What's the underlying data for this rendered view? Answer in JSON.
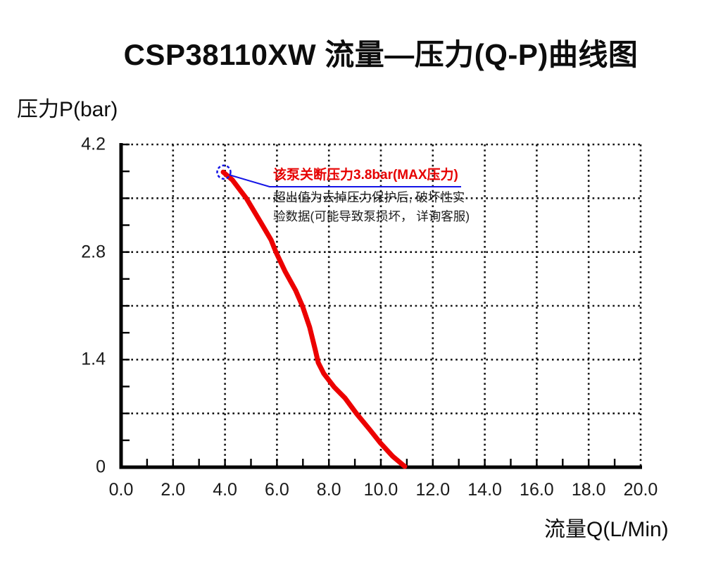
{
  "title": "CSP38110XW 流量—压力(Q-P)曲线图",
  "axes": {
    "y_title": "压力P(bar)",
    "x_title": "流量Q(L/Min)"
  },
  "annotation": {
    "headline": "该泵关断压力3.8bar(MAX压力)",
    "body_line1": "超出值为去掉压力保护后, 破坏性实",
    "body_line2": "验数据(可能导致泵损坏， 详询客服)",
    "headline_color": "#e60000",
    "leader_color": "#1414e6"
  },
  "chart_data": {
    "type": "line",
    "title": "CSP38110XW 流量—压力(Q-P)曲线图",
    "xlabel": "流量Q(L/Min)",
    "ylabel": "压力P(bar)",
    "xlim": [
      0,
      20
    ],
    "ylim": [
      0,
      4.2
    ],
    "grid": {
      "style": "dotted",
      "x_gridlines": [
        2,
        4,
        6,
        8,
        10,
        12,
        14,
        16,
        18,
        20
      ],
      "y_gridlines": [
        0.7,
        1.4,
        2.1,
        2.8,
        3.5,
        4.2
      ]
    },
    "x_minor_tick_step": 1,
    "y_minor_tick_step": 0.35,
    "x_ticks": [
      {
        "value": 0,
        "label": "0.0"
      },
      {
        "value": 2,
        "label": "2.0"
      },
      {
        "value": 4,
        "label": "4.0"
      },
      {
        "value": 6,
        "label": "6.0"
      },
      {
        "value": 8,
        "label": "8.0"
      },
      {
        "value": 10,
        "label": "10.0"
      },
      {
        "value": 12,
        "label": "12.0"
      },
      {
        "value": 14,
        "label": "14.0"
      },
      {
        "value": 16,
        "label": "16.0"
      },
      {
        "value": 18,
        "label": "18.0"
      },
      {
        "value": 20,
        "label": "20.0"
      }
    ],
    "y_ticks": [
      {
        "value": 4.2,
        "label": "4.2"
      },
      {
        "value": 2.8,
        "label": "2.8"
      },
      {
        "value": 1.4,
        "label": "1.4"
      },
      {
        "value": 0,
        "label": "0"
      }
    ],
    "series": [
      {
        "name": "Q-P curve",
        "color": "#ec0000",
        "points": [
          [
            3.93,
            3.84
          ],
          [
            4.28,
            3.74
          ],
          [
            4.82,
            3.5
          ],
          [
            5.37,
            3.19
          ],
          [
            5.77,
            2.96
          ],
          [
            5.96,
            2.8
          ],
          [
            6.31,
            2.55
          ],
          [
            6.72,
            2.3
          ],
          [
            6.99,
            2.09
          ],
          [
            7.26,
            1.82
          ],
          [
            7.48,
            1.52
          ],
          [
            7.59,
            1.36
          ],
          [
            7.8,
            1.22
          ],
          [
            8.21,
            1.04
          ],
          [
            8.62,
            0.9
          ],
          [
            9.08,
            0.69
          ],
          [
            9.57,
            0.49
          ],
          [
            9.97,
            0.32
          ],
          [
            10.46,
            0.14
          ],
          [
            10.92,
            0.01
          ]
        ]
      }
    ],
    "marked_point": {
      "q": 3.93,
      "p": 3.84,
      "note": "shutoff pressure 3.8 bar (MAX)"
    }
  }
}
